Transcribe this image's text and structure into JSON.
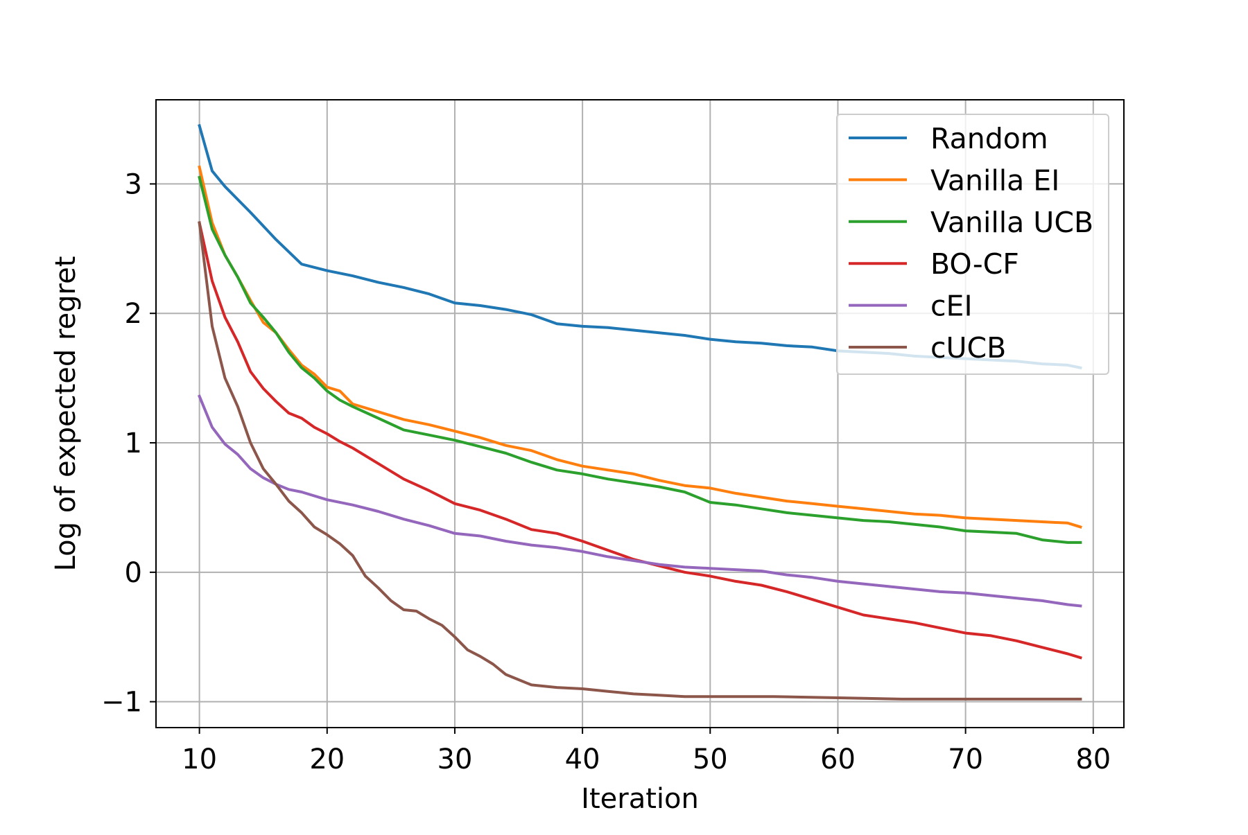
{
  "chart_data": {
    "type": "line",
    "title": "",
    "xlabel": "Iteration",
    "ylabel": "Log of expected regret",
    "xlim": [
      6.6,
      82.4
    ],
    "ylim": [
      -1.2,
      3.65
    ],
    "xticks": [
      10,
      20,
      30,
      40,
      50,
      60,
      70,
      80
    ],
    "yticks": [
      -1,
      0,
      1,
      2,
      3
    ],
    "xtick_labels": [
      "10",
      "20",
      "30",
      "40",
      "50",
      "60",
      "70",
      "80"
    ],
    "ytick_labels": [
      "−1",
      "0",
      "1",
      "2",
      "3"
    ],
    "grid": true,
    "legend_position": "top-right",
    "series": [
      {
        "name": "Random",
        "color": "#1f77b4",
        "x": [
          10,
          11,
          12,
          14,
          16,
          18,
          20,
          22,
          24,
          26,
          28,
          30,
          32,
          34,
          36,
          38,
          40,
          42,
          44,
          46,
          48,
          50,
          52,
          54,
          56,
          58,
          60,
          62,
          64,
          66,
          68,
          70,
          72,
          74,
          76,
          78,
          79
        ],
        "y": [
          3.45,
          3.1,
          2.98,
          2.78,
          2.57,
          2.38,
          2.33,
          2.29,
          2.24,
          2.2,
          2.15,
          2.08,
          2.06,
          2.03,
          1.99,
          1.92,
          1.9,
          1.89,
          1.87,
          1.85,
          1.83,
          1.8,
          1.78,
          1.77,
          1.75,
          1.74,
          1.71,
          1.7,
          1.69,
          1.67,
          1.66,
          1.65,
          1.64,
          1.63,
          1.61,
          1.6,
          1.58
        ]
      },
      {
        "name": "Vanilla EI",
        "color": "#ff7f0e",
        "x": [
          10,
          11,
          12,
          13,
          14,
          15,
          16,
          17,
          18,
          19,
          20,
          21,
          22,
          24,
          26,
          28,
          30,
          32,
          34,
          36,
          38,
          40,
          42,
          44,
          46,
          48,
          50,
          52,
          54,
          56,
          58,
          60,
          62,
          64,
          66,
          68,
          70,
          72,
          74,
          76,
          78,
          79
        ],
        "y": [
          3.13,
          2.7,
          2.45,
          2.28,
          2.1,
          1.93,
          1.85,
          1.72,
          1.6,
          1.53,
          1.43,
          1.4,
          1.3,
          1.24,
          1.18,
          1.14,
          1.09,
          1.04,
          0.98,
          0.94,
          0.87,
          0.82,
          0.79,
          0.76,
          0.71,
          0.67,
          0.65,
          0.61,
          0.58,
          0.55,
          0.53,
          0.51,
          0.49,
          0.47,
          0.45,
          0.44,
          0.42,
          0.41,
          0.4,
          0.39,
          0.38,
          0.35
        ]
      },
      {
        "name": "Vanilla UCB",
        "color": "#2ca02c",
        "x": [
          10,
          11,
          12,
          13,
          14,
          15,
          16,
          17,
          18,
          19,
          20,
          21,
          22,
          24,
          26,
          28,
          30,
          32,
          34,
          36,
          38,
          40,
          42,
          44,
          46,
          48,
          50,
          52,
          54,
          56,
          58,
          60,
          62,
          64,
          66,
          68,
          70,
          72,
          74,
          76,
          78,
          79
        ],
        "y": [
          3.05,
          2.65,
          2.45,
          2.28,
          2.08,
          1.97,
          1.85,
          1.7,
          1.58,
          1.5,
          1.4,
          1.33,
          1.28,
          1.19,
          1.1,
          1.06,
          1.02,
          0.97,
          0.92,
          0.85,
          0.79,
          0.76,
          0.72,
          0.69,
          0.66,
          0.62,
          0.54,
          0.52,
          0.49,
          0.46,
          0.44,
          0.42,
          0.4,
          0.39,
          0.37,
          0.35,
          0.32,
          0.31,
          0.3,
          0.25,
          0.23,
          0.23
        ]
      },
      {
        "name": "BO-CF",
        "color": "#d62728",
        "x": [
          10,
          11,
          12,
          13,
          14,
          15,
          16,
          17,
          18,
          19,
          20,
          21,
          22,
          24,
          26,
          28,
          30,
          32,
          34,
          36,
          38,
          40,
          42,
          44,
          46,
          48,
          50,
          52,
          54,
          56,
          58,
          60,
          62,
          64,
          66,
          68,
          70,
          72,
          74,
          76,
          78,
          79
        ],
        "y": [
          2.7,
          2.25,
          1.97,
          1.78,
          1.55,
          1.42,
          1.32,
          1.23,
          1.19,
          1.12,
          1.07,
          1.01,
          0.96,
          0.84,
          0.72,
          0.63,
          0.53,
          0.48,
          0.41,
          0.33,
          0.3,
          0.24,
          0.17,
          0.1,
          0.05,
          0.0,
          -0.03,
          -0.07,
          -0.1,
          -0.15,
          -0.21,
          -0.27,
          -0.33,
          -0.36,
          -0.39,
          -0.43,
          -0.47,
          -0.49,
          -0.53,
          -0.58,
          -0.63,
          -0.66
        ]
      },
      {
        "name": "cEI",
        "color": "#9467bd",
        "x": [
          10,
          11,
          12,
          13,
          14,
          15,
          16,
          17,
          18,
          20,
          22,
          24,
          26,
          28,
          30,
          32,
          34,
          36,
          38,
          40,
          42,
          44,
          46,
          48,
          50,
          52,
          54,
          56,
          58,
          60,
          62,
          64,
          66,
          68,
          70,
          72,
          74,
          76,
          78,
          79
        ],
        "y": [
          1.36,
          1.12,
          0.99,
          0.91,
          0.8,
          0.73,
          0.68,
          0.64,
          0.62,
          0.56,
          0.52,
          0.47,
          0.41,
          0.36,
          0.3,
          0.28,
          0.24,
          0.21,
          0.19,
          0.16,
          0.12,
          0.09,
          0.06,
          0.04,
          0.03,
          0.02,
          0.01,
          -0.02,
          -0.04,
          -0.07,
          -0.09,
          -0.11,
          -0.13,
          -0.15,
          -0.16,
          -0.18,
          -0.2,
          -0.22,
          -0.25,
          -0.26
        ]
      },
      {
        "name": "cUCB",
        "color": "#8c564b",
        "x": [
          10,
          11,
          12,
          13,
          14,
          15,
          16,
          17,
          18,
          19,
          20,
          21,
          22,
          23,
          24,
          25,
          26,
          27,
          28,
          29,
          30,
          31,
          32,
          33,
          34,
          35,
          36,
          38,
          40,
          42,
          44,
          46,
          48,
          50,
          55,
          60,
          65,
          70,
          75,
          79
        ],
        "y": [
          2.7,
          1.9,
          1.5,
          1.28,
          1.0,
          0.8,
          0.68,
          0.55,
          0.46,
          0.35,
          0.29,
          0.22,
          0.13,
          -0.03,
          -0.12,
          -0.22,
          -0.29,
          -0.3,
          -0.36,
          -0.41,
          -0.5,
          -0.6,
          -0.65,
          -0.71,
          -0.79,
          -0.83,
          -0.87,
          -0.89,
          -0.9,
          -0.92,
          -0.94,
          -0.95,
          -0.96,
          -0.96,
          -0.96,
          -0.97,
          -0.98,
          -0.98,
          -0.98,
          -0.98
        ]
      }
    ]
  }
}
